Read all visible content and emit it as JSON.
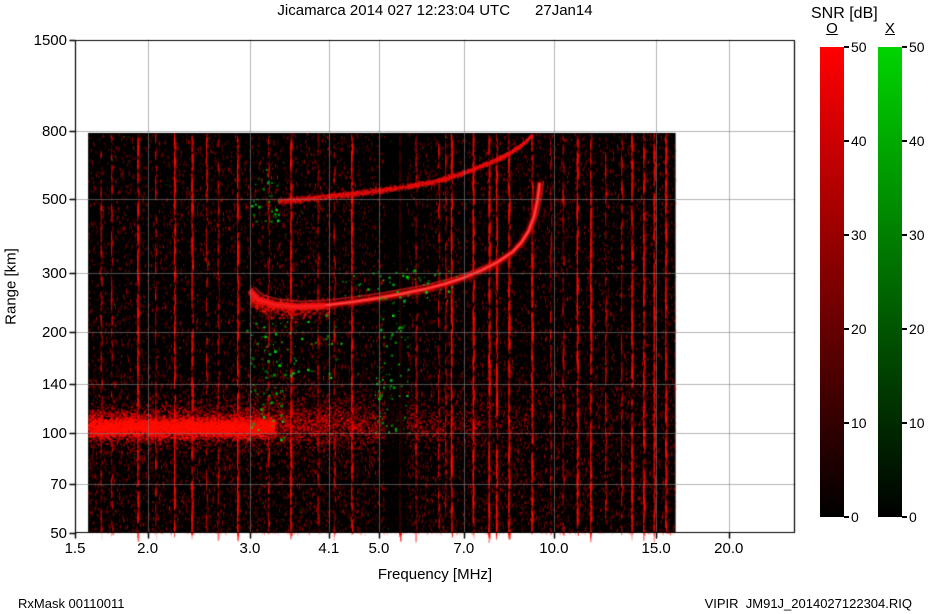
{
  "header": {
    "title": "Jicamarca 2014 027 12:23:04 UTC      27Jan14"
  },
  "footer": {
    "left": "RxMask 00110011",
    "right": "VIPIR  JM91J_2014027122304.RIQ"
  },
  "chart_data": {
    "type": "heatmap",
    "title": "Jicamarca 2014 027 12:23:04 UTC      27Jan14",
    "xlabel": "Frequency [MHz]",
    "ylabel": "Range [km]",
    "x_scale": "log",
    "y_scale": "log",
    "xlim": [
      1.5,
      26
    ],
    "ylim": [
      50,
      1500
    ],
    "x_ticks": [
      "1.5",
      "2.0",
      "3.0",
      "4.1",
      "5.0",
      "7.0",
      "10.0",
      "15.0",
      "20.0"
    ],
    "y_ticks": [
      "50",
      "70",
      "100",
      "140",
      "200",
      "300",
      "500",
      "800",
      "1500"
    ],
    "grid": true,
    "data_extent": {
      "f_mhz": [
        1.58,
        16.2
      ],
      "range_km": [
        50,
        790
      ]
    },
    "colorbar": {
      "title": "SNR [dB]",
      "min": 0,
      "max": 50,
      "bars": [
        {
          "label": "O",
          "color_top": "#ff0000",
          "ticks": [
            "0",
            "10",
            "20",
            "30",
            "40",
            "50"
          ]
        },
        {
          "label": "X",
          "color_top": "#00d400",
          "ticks": [
            "0",
            "10",
            "20",
            "30",
            "40",
            "50"
          ]
        }
      ]
    },
    "traces": [
      {
        "name": "f-layer-first-hop-o-mode",
        "color": "#e60808",
        "points_f_km": [
          [
            3.02,
            262
          ],
          [
            3.1,
            250
          ],
          [
            3.3,
            242
          ],
          [
            3.6,
            238
          ],
          [
            4.0,
            240
          ],
          [
            4.5,
            246
          ],
          [
            5.0,
            253
          ],
          [
            5.5,
            261
          ],
          [
            6.0,
            269
          ],
          [
            6.5,
            279
          ],
          [
            7.0,
            291
          ],
          [
            7.5,
            306
          ],
          [
            8.0,
            324
          ],
          [
            8.5,
            348
          ],
          [
            8.8,
            372
          ],
          [
            9.05,
            402
          ],
          [
            9.25,
            445
          ],
          [
            9.38,
            500
          ],
          [
            9.45,
            555
          ]
        ]
      },
      {
        "name": "f-layer-second-hop",
        "color": "#cc1111",
        "points_f_km": [
          [
            3.35,
            495
          ],
          [
            3.8,
            505
          ],
          [
            4.3,
            516
          ],
          [
            5.0,
            532
          ],
          [
            5.6,
            548
          ],
          [
            6.2,
            566
          ],
          [
            6.8,
            592
          ],
          [
            7.4,
            625
          ],
          [
            8.0,
            662
          ],
          [
            8.5,
            700
          ],
          [
            8.9,
            742
          ],
          [
            9.15,
            780
          ]
        ]
      }
    ],
    "e_region_band": {
      "center_km": 105,
      "f_start": 1.58,
      "f_end": 9.0
    },
    "x_mode_clusters": [
      {
        "f": [
          2.95,
          3.45
        ],
        "km": [
          95,
          215
        ],
        "n": 80
      },
      {
        "f": [
          3.0,
          3.35
        ],
        "km": [
          430,
          620
        ],
        "n": 32
      },
      {
        "f": [
          3.4,
          4.3
        ],
        "km": [
          140,
          235
        ],
        "n": 38
      },
      {
        "f": [
          4.9,
          5.65
        ],
        "km": [
          100,
          165
        ],
        "n": 60
      },
      {
        "f": [
          4.3,
          6.8
        ],
        "km": [
          245,
          310
        ],
        "n": 60
      },
      {
        "f": [
          5.0,
          5.6
        ],
        "km": [
          170,
          235
        ],
        "n": 24
      }
    ],
    "rfi_lines_mhz": [
      1.66,
      1.73,
      1.92,
      2.06,
      2.22,
      2.38,
      2.52,
      2.64,
      2.85,
      3.22,
      3.52,
      3.92,
      4.18,
      4.48,
      5.42,
      5.78,
      6.32,
      6.5,
      6.65,
      7.25,
      7.72,
      7.95,
      8.35,
      9.15,
      9.85,
      10.35,
      10.95,
      11.55,
      12.25,
      13.05,
      13.6,
      14.25,
      14.85,
      15.55
    ],
    "quiet_band_mhz": [
      5.12,
      5.58
    ],
    "noise": {
      "seed": 1327,
      "speckles": 26000,
      "extra_low_speckles": 7000,
      "green_sparse": 160
    }
  }
}
